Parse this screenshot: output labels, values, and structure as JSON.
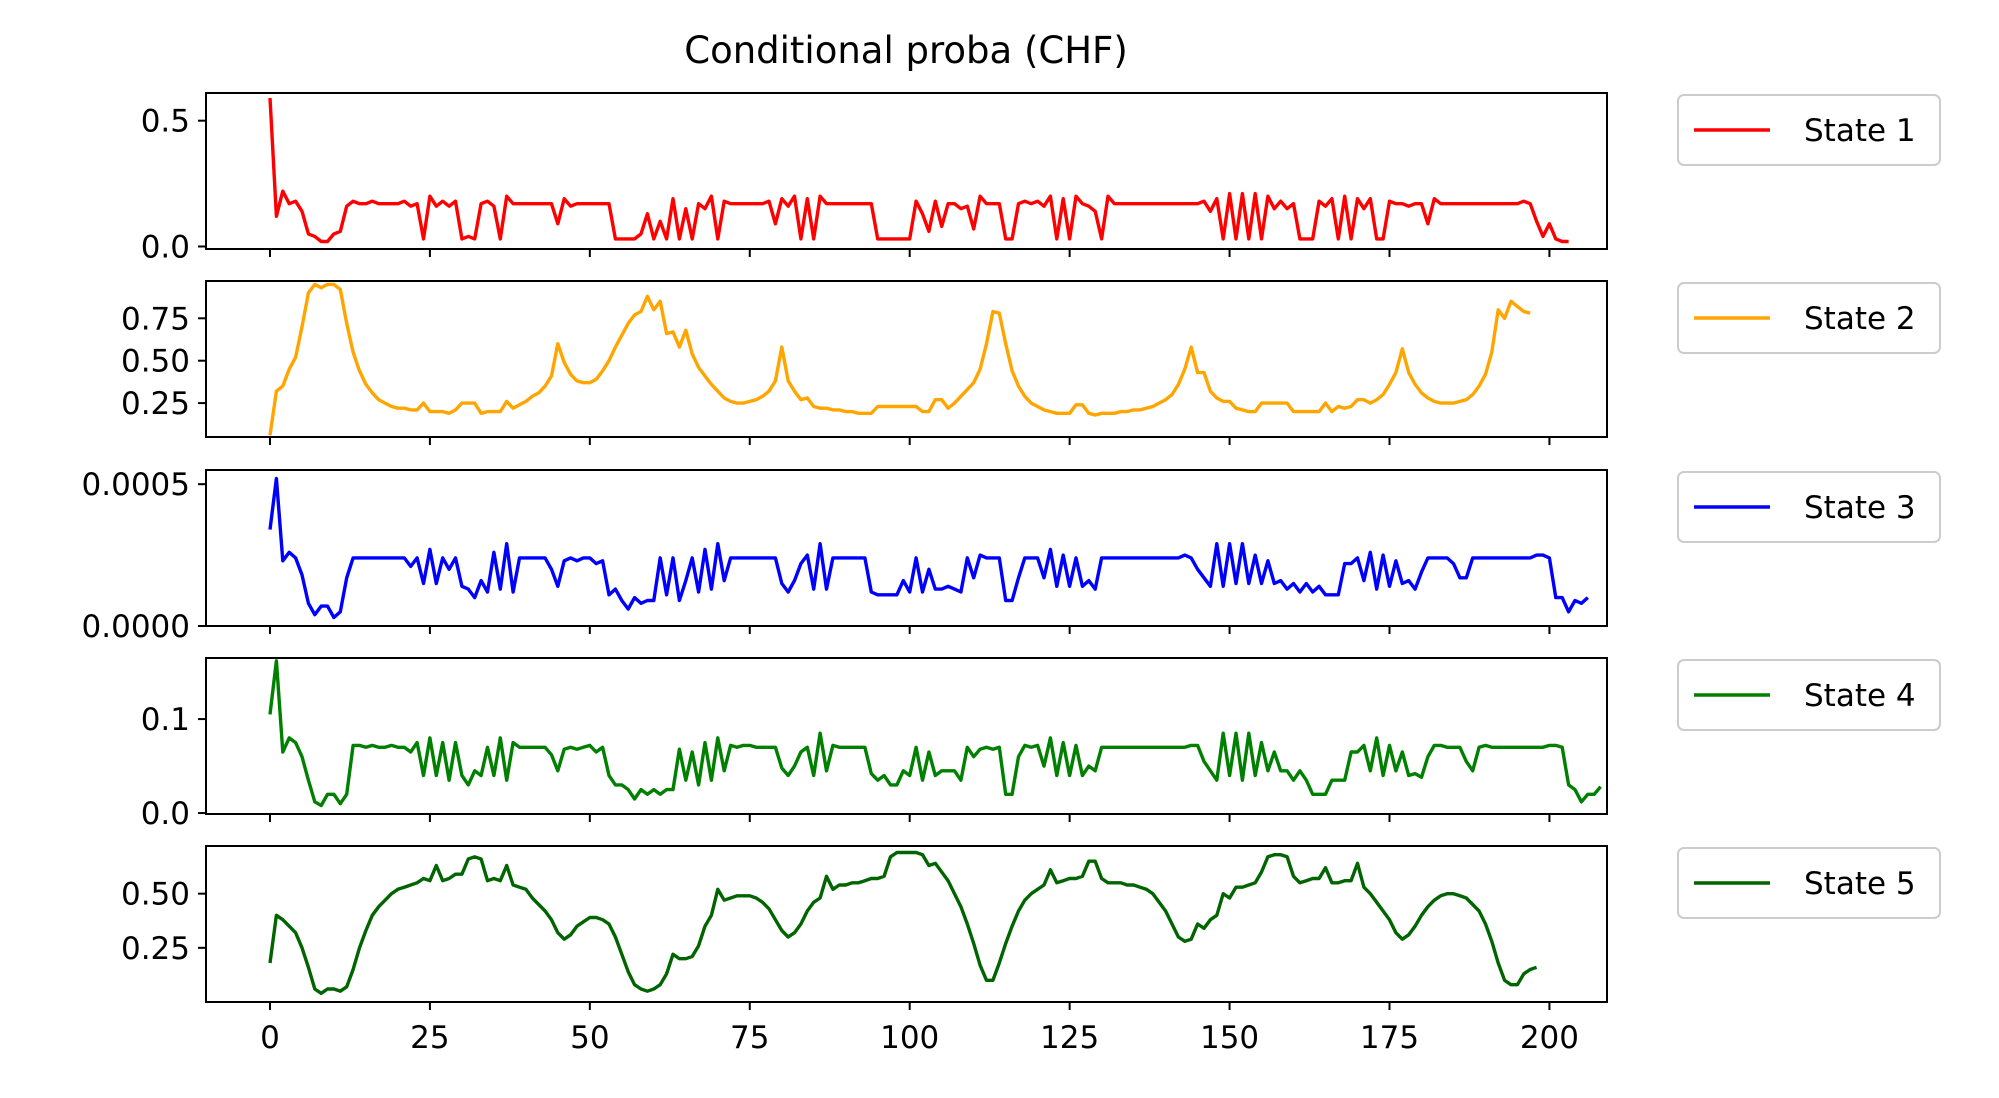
{
  "chart_data": {
    "type": "line",
    "title": "Conditional proba (CHF)",
    "xlim": [
      -10,
      209
    ],
    "x_ticks": [
      0,
      25,
      50,
      75,
      100,
      125,
      150,
      175,
      200
    ],
    "x_tick_labels": [
      "0",
      "25",
      "50",
      "75",
      "100",
      "125",
      "150",
      "175",
      "200"
    ],
    "x_start": 0,
    "x_step": 1,
    "legend_placement": "right of each subplot",
    "grid": false,
    "panels": [
      {
        "name": "State 1",
        "color": "#ff0000",
        "ylim": [
          -0.01,
          0.61
        ],
        "y_ticks": [
          0.0,
          0.5
        ],
        "y_tick_labels": [
          "0.0",
          "0.5"
        ],
        "values": [
          0.59,
          0.12,
          0.22,
          0.17,
          0.18,
          0.14,
          0.05,
          0.04,
          0.02,
          0.02,
          0.05,
          0.06,
          0.16,
          0.18,
          0.17,
          0.17,
          0.18,
          0.17,
          0.17,
          0.17,
          0.17,
          0.18,
          0.16,
          0.17,
          0.03,
          0.2,
          0.16,
          0.18,
          0.16,
          0.18,
          0.03,
          0.04,
          0.03,
          0.17,
          0.18,
          0.16,
          0.03,
          0.2,
          0.17,
          0.17,
          0.17,
          0.17,
          0.17,
          0.17,
          0.17,
          0.09,
          0.19,
          0.16,
          0.17,
          0.17,
          0.17,
          0.17,
          0.17,
          0.17,
          0.03,
          0.03,
          0.03,
          0.03,
          0.05,
          0.13,
          0.03,
          0.1,
          0.03,
          0.19,
          0.03,
          0.15,
          0.03,
          0.17,
          0.15,
          0.2,
          0.03,
          0.18,
          0.17,
          0.17,
          0.17,
          0.17,
          0.17,
          0.17,
          0.18,
          0.09,
          0.19,
          0.16,
          0.2,
          0.03,
          0.19,
          0.03,
          0.2,
          0.17,
          0.17,
          0.17,
          0.17,
          0.17,
          0.17,
          0.17,
          0.17,
          0.03,
          0.03,
          0.03,
          0.03,
          0.03,
          0.03,
          0.18,
          0.13,
          0.06,
          0.18,
          0.08,
          0.17,
          0.17,
          0.15,
          0.16,
          0.07,
          0.2,
          0.17,
          0.17,
          0.17,
          0.03,
          0.03,
          0.17,
          0.18,
          0.17,
          0.18,
          0.16,
          0.2,
          0.03,
          0.19,
          0.03,
          0.2,
          0.17,
          0.16,
          0.14,
          0.03,
          0.2,
          0.17,
          0.17,
          0.17,
          0.17,
          0.17,
          0.17,
          0.17,
          0.17,
          0.17,
          0.17,
          0.17,
          0.17,
          0.17,
          0.17,
          0.18,
          0.14,
          0.19,
          0.03,
          0.21,
          0.03,
          0.21,
          0.03,
          0.21,
          0.03,
          0.2,
          0.15,
          0.18,
          0.15,
          0.17,
          0.03,
          0.03,
          0.03,
          0.18,
          0.16,
          0.19,
          0.03,
          0.2,
          0.03,
          0.19,
          0.15,
          0.19,
          0.03,
          0.03,
          0.18,
          0.17,
          0.17,
          0.16,
          0.17,
          0.17,
          0.09,
          0.19,
          0.17,
          0.17,
          0.17,
          0.17,
          0.17,
          0.17,
          0.17,
          0.17,
          0.17,
          0.17,
          0.17,
          0.17,
          0.17,
          0.18,
          0.17,
          0.1,
          0.04,
          0.09,
          0.03,
          0.02,
          0.02
        ]
      },
      {
        "name": "State 2",
        "color": "#ffa500",
        "ylim": [
          0.05,
          0.97
        ],
        "y_ticks": [
          0.25,
          0.5,
          0.75
        ],
        "y_tick_labels": [
          "0.25",
          "0.50",
          "0.75"
        ],
        "values": [
          0.06,
          0.32,
          0.35,
          0.45,
          0.52,
          0.7,
          0.9,
          0.95,
          0.93,
          0.95,
          0.95,
          0.92,
          0.72,
          0.55,
          0.44,
          0.36,
          0.31,
          0.27,
          0.25,
          0.23,
          0.22,
          0.22,
          0.21,
          0.21,
          0.25,
          0.2,
          0.2,
          0.2,
          0.19,
          0.21,
          0.25,
          0.25,
          0.25,
          0.19,
          0.2,
          0.2,
          0.2,
          0.26,
          0.22,
          0.24,
          0.26,
          0.29,
          0.31,
          0.35,
          0.41,
          0.6,
          0.49,
          0.42,
          0.38,
          0.37,
          0.37,
          0.39,
          0.44,
          0.5,
          0.58,
          0.65,
          0.72,
          0.77,
          0.79,
          0.88,
          0.8,
          0.85,
          0.66,
          0.67,
          0.58,
          0.68,
          0.54,
          0.46,
          0.41,
          0.36,
          0.32,
          0.28,
          0.26,
          0.25,
          0.25,
          0.26,
          0.27,
          0.29,
          0.32,
          0.38,
          0.58,
          0.38,
          0.32,
          0.27,
          0.28,
          0.23,
          0.22,
          0.22,
          0.21,
          0.21,
          0.2,
          0.2,
          0.19,
          0.19,
          0.19,
          0.23,
          0.23,
          0.23,
          0.23,
          0.23,
          0.23,
          0.23,
          0.2,
          0.2,
          0.27,
          0.27,
          0.22,
          0.25,
          0.29,
          0.33,
          0.37,
          0.45,
          0.6,
          0.79,
          0.78,
          0.6,
          0.44,
          0.35,
          0.29,
          0.25,
          0.23,
          0.21,
          0.2,
          0.19,
          0.19,
          0.19,
          0.24,
          0.24,
          0.19,
          0.18,
          0.19,
          0.19,
          0.19,
          0.2,
          0.2,
          0.21,
          0.21,
          0.22,
          0.23,
          0.25,
          0.27,
          0.3,
          0.36,
          0.45,
          0.58,
          0.43,
          0.43,
          0.32,
          0.28,
          0.26,
          0.26,
          0.22,
          0.21,
          0.2,
          0.2,
          0.25,
          0.25,
          0.25,
          0.25,
          0.25,
          0.2,
          0.2,
          0.2,
          0.2,
          0.2,
          0.25,
          0.2,
          0.23,
          0.22,
          0.23,
          0.27,
          0.27,
          0.25,
          0.27,
          0.3,
          0.36,
          0.43,
          0.57,
          0.43,
          0.36,
          0.31,
          0.28,
          0.26,
          0.25,
          0.25,
          0.25,
          0.26,
          0.27,
          0.3,
          0.35,
          0.42,
          0.55,
          0.8,
          0.75,
          0.85,
          0.82,
          0.79,
          0.78
        ]
      },
      {
        "name": "State 3",
        "color": "#0000ff",
        "ylim": [
          0.0,
          0.00055
        ],
        "y_ticks": [
          0.0,
          0.0005
        ],
        "y_tick_labels": [
          "0.0000",
          "0.0005"
        ],
        "values": [
          0.00034,
          0.00052,
          0.00023,
          0.00026,
          0.00024,
          0.00018,
          8e-05,
          4e-05,
          7e-05,
          7e-05,
          3e-05,
          5e-05,
          0.00017,
          0.00024,
          0.00024,
          0.00024,
          0.00024,
          0.00024,
          0.00024,
          0.00024,
          0.00024,
          0.00024,
          0.00021,
          0.00024,
          0.00015,
          0.00027,
          0.00015,
          0.00024,
          0.0002,
          0.00024,
          0.00014,
          0.00013,
          0.0001,
          0.00016,
          0.00012,
          0.00026,
          0.00013,
          0.00029,
          0.00012,
          0.00024,
          0.00024,
          0.00024,
          0.00024,
          0.00024,
          0.0002,
          0.00014,
          0.00023,
          0.00024,
          0.00023,
          0.00024,
          0.00024,
          0.00022,
          0.00023,
          0.00011,
          0.00013,
          9e-05,
          6e-05,
          0.0001,
          8e-05,
          9e-05,
          9e-05,
          0.00024,
          0.00011,
          0.00024,
          9e-05,
          0.00016,
          0.00024,
          0.00012,
          0.00027,
          0.00013,
          0.00029,
          0.00016,
          0.00024,
          0.00024,
          0.00024,
          0.00024,
          0.00024,
          0.00024,
          0.00024,
          0.00024,
          0.00015,
          0.00012,
          0.00016,
          0.00022,
          0.00025,
          0.00013,
          0.00029,
          0.00013,
          0.00024,
          0.00024,
          0.00024,
          0.00024,
          0.00024,
          0.00024,
          0.00012,
          0.00011,
          0.00011,
          0.00011,
          0.00011,
          0.00016,
          0.00012,
          0.00024,
          0.00012,
          0.0002,
          0.00013,
          0.00013,
          0.00014,
          0.00013,
          0.00012,
          0.00024,
          0.00017,
          0.00025,
          0.00024,
          0.00024,
          0.00024,
          9e-05,
          9e-05,
          0.00017,
          0.00024,
          0.00024,
          0.00024,
          0.00017,
          0.00027,
          0.00014,
          0.00025,
          0.00014,
          0.00024,
          0.00014,
          0.00016,
          0.00013,
          0.00024,
          0.00024,
          0.00024,
          0.00024,
          0.00024,
          0.00024,
          0.00024,
          0.00024,
          0.00024,
          0.00024,
          0.00024,
          0.00024,
          0.00024,
          0.00025,
          0.00024,
          0.0002,
          0.00017,
          0.00014,
          0.00029,
          0.00014,
          0.00029,
          0.00015,
          0.00029,
          0.00015,
          0.00025,
          0.00015,
          0.00023,
          0.00015,
          0.00016,
          0.00013,
          0.00015,
          0.00012,
          0.00015,
          0.00012,
          0.00014,
          0.00011,
          0.00011,
          0.00011,
          0.00022,
          0.00022,
          0.00024,
          0.00016,
          0.00026,
          0.00013,
          0.00025,
          0.00014,
          0.00023,
          0.00015,
          0.00016,
          0.00013,
          0.00019,
          0.00024,
          0.00024,
          0.00024,
          0.00024,
          0.00022,
          0.00017,
          0.00017,
          0.00024,
          0.00024,
          0.00024,
          0.00024,
          0.00024,
          0.00024,
          0.00024,
          0.00024,
          0.00024,
          0.00024,
          0.00025,
          0.00025,
          0.00024,
          0.0001,
          0.0001,
          5e-05,
          9e-05,
          8e-05,
          0.0001
        ]
      },
      {
        "name": "State 4",
        "color": "#008000",
        "ylim": [
          -0.001,
          0.165
        ],
        "y_ticks": [
          0.0,
          0.1
        ],
        "y_tick_labels": [
          "0.0",
          "0.1"
        ],
        "values": [
          0.105,
          0.162,
          0.065,
          0.08,
          0.075,
          0.06,
          0.035,
          0.012,
          0.008,
          0.02,
          0.02,
          0.01,
          0.02,
          0.072,
          0.072,
          0.07,
          0.072,
          0.07,
          0.07,
          0.072,
          0.07,
          0.07,
          0.065,
          0.075,
          0.04,
          0.08,
          0.04,
          0.075,
          0.035,
          0.075,
          0.04,
          0.03,
          0.045,
          0.04,
          0.07,
          0.04,
          0.08,
          0.035,
          0.075,
          0.07,
          0.07,
          0.07,
          0.07,
          0.07,
          0.062,
          0.045,
          0.068,
          0.07,
          0.068,
          0.07,
          0.072,
          0.065,
          0.07,
          0.04,
          0.03,
          0.03,
          0.025,
          0.015,
          0.025,
          0.02,
          0.025,
          0.02,
          0.025,
          0.025,
          0.068,
          0.035,
          0.065,
          0.03,
          0.075,
          0.035,
          0.08,
          0.045,
          0.072,
          0.07,
          0.072,
          0.072,
          0.07,
          0.07,
          0.07,
          0.07,
          0.048,
          0.04,
          0.05,
          0.065,
          0.07,
          0.04,
          0.085,
          0.045,
          0.072,
          0.07,
          0.07,
          0.07,
          0.07,
          0.07,
          0.042,
          0.035,
          0.04,
          0.03,
          0.03,
          0.045,
          0.04,
          0.07,
          0.035,
          0.065,
          0.04,
          0.045,
          0.045,
          0.045,
          0.035,
          0.07,
          0.06,
          0.068,
          0.07,
          0.068,
          0.07,
          0.02,
          0.02,
          0.06,
          0.072,
          0.07,
          0.072,
          0.05,
          0.08,
          0.04,
          0.075,
          0.04,
          0.072,
          0.04,
          0.05,
          0.045,
          0.07,
          0.07,
          0.07,
          0.07,
          0.07,
          0.07,
          0.07,
          0.07,
          0.07,
          0.07,
          0.07,
          0.07,
          0.07,
          0.07,
          0.072,
          0.072,
          0.055,
          0.045,
          0.035,
          0.085,
          0.04,
          0.085,
          0.035,
          0.085,
          0.04,
          0.075,
          0.045,
          0.065,
          0.045,
          0.045,
          0.035,
          0.045,
          0.035,
          0.02,
          0.02,
          0.02,
          0.035,
          0.035,
          0.035,
          0.065,
          0.065,
          0.072,
          0.045,
          0.08,
          0.04,
          0.072,
          0.045,
          0.065,
          0.04,
          0.042,
          0.038,
          0.06,
          0.072,
          0.072,
          0.07,
          0.07,
          0.07,
          0.055,
          0.045,
          0.07,
          0.072,
          0.07,
          0.07,
          0.07,
          0.07,
          0.07,
          0.07,
          0.07,
          0.07,
          0.07,
          0.072,
          0.072,
          0.07,
          0.03,
          0.025,
          0.012,
          0.02,
          0.02,
          0.028
        ]
      },
      {
        "name": "State 5",
        "color": "#006400",
        "ylim": [
          0.0,
          0.72
        ],
        "y_ticks": [
          0.25,
          0.5
        ],
        "y_tick_labels": [
          "0.25",
          "0.50"
        ],
        "values": [
          0.18,
          0.4,
          0.38,
          0.35,
          0.32,
          0.25,
          0.16,
          0.06,
          0.04,
          0.06,
          0.06,
          0.05,
          0.07,
          0.15,
          0.25,
          0.33,
          0.4,
          0.44,
          0.47,
          0.5,
          0.52,
          0.53,
          0.54,
          0.55,
          0.57,
          0.56,
          0.63,
          0.56,
          0.57,
          0.59,
          0.59,
          0.66,
          0.67,
          0.66,
          0.56,
          0.57,
          0.56,
          0.63,
          0.54,
          0.53,
          0.52,
          0.48,
          0.45,
          0.42,
          0.38,
          0.32,
          0.29,
          0.31,
          0.35,
          0.37,
          0.39,
          0.39,
          0.38,
          0.36,
          0.3,
          0.22,
          0.14,
          0.08,
          0.06,
          0.05,
          0.06,
          0.08,
          0.13,
          0.22,
          0.2,
          0.2,
          0.21,
          0.26,
          0.35,
          0.4,
          0.52,
          0.47,
          0.48,
          0.49,
          0.49,
          0.49,
          0.48,
          0.46,
          0.43,
          0.38,
          0.33,
          0.3,
          0.32,
          0.36,
          0.42,
          0.46,
          0.48,
          0.58,
          0.52,
          0.54,
          0.54,
          0.55,
          0.55,
          0.56,
          0.57,
          0.57,
          0.58,
          0.67,
          0.69,
          0.69,
          0.69,
          0.69,
          0.68,
          0.63,
          0.64,
          0.6,
          0.56,
          0.5,
          0.44,
          0.36,
          0.27,
          0.17,
          0.1,
          0.1,
          0.18,
          0.27,
          0.35,
          0.42,
          0.47,
          0.5,
          0.52,
          0.54,
          0.61,
          0.55,
          0.56,
          0.57,
          0.57,
          0.58,
          0.65,
          0.65,
          0.57,
          0.55,
          0.55,
          0.55,
          0.54,
          0.54,
          0.53,
          0.52,
          0.5,
          0.46,
          0.42,
          0.36,
          0.3,
          0.28,
          0.29,
          0.36,
          0.34,
          0.38,
          0.4,
          0.5,
          0.48,
          0.53,
          0.53,
          0.54,
          0.55,
          0.6,
          0.67,
          0.68,
          0.68,
          0.67,
          0.58,
          0.55,
          0.56,
          0.57,
          0.57,
          0.62,
          0.55,
          0.55,
          0.56,
          0.56,
          0.64,
          0.53,
          0.5,
          0.46,
          0.42,
          0.38,
          0.32,
          0.29,
          0.31,
          0.35,
          0.4,
          0.44,
          0.47,
          0.49,
          0.5,
          0.5,
          0.49,
          0.48,
          0.45,
          0.42,
          0.36,
          0.28,
          0.18,
          0.1,
          0.08,
          0.08,
          0.13,
          0.15,
          0.16
        ]
      }
    ]
  }
}
